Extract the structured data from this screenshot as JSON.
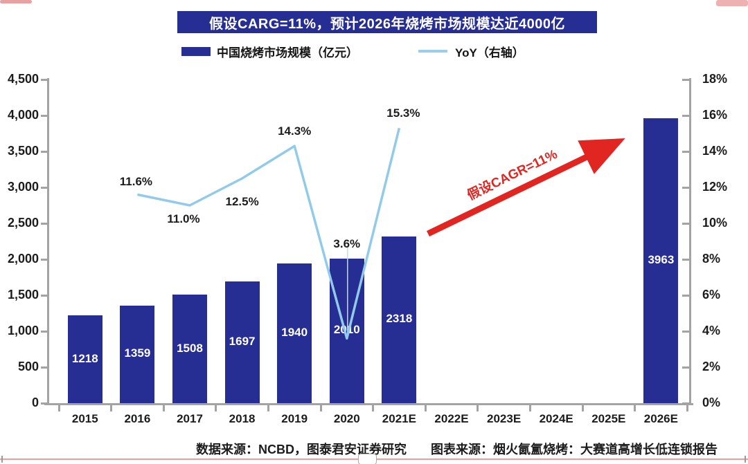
{
  "title": {
    "text": "假设CARG=11%，预计2026年烧烤市场规模达近4000亿"
  },
  "legend": {
    "items": [
      {
        "label": "中国烧烤市场规模（亿元）",
        "swatch": "bar",
        "color": "#262D93"
      },
      {
        "label": "YoY（右轴）",
        "swatch": "line",
        "color": "#9CCEEA"
      }
    ]
  },
  "annotations": {
    "trend_arrow_label": "假设CAGR=11%",
    "arrow_color": "#E12520"
  },
  "footer": {
    "data_source": "数据来源：NCBD，图泰君安证券研究",
    "chart_source": "图表来源：烟火氤氲烧烤：大赛道高增长低连锁报告"
  },
  "chart_data": {
    "type": "bar",
    "title": "假设CARG=11%，预计2026年烧烤市场规模达近4000亿",
    "categories": [
      "2015",
      "2016",
      "2017",
      "2018",
      "2019",
      "2020",
      "2021E",
      "2022E",
      "2023E",
      "2024E",
      "2025E",
      "2026E"
    ],
    "series": [
      {
        "name": "中国烧烤市场规模（亿元）",
        "type": "bar",
        "axis": "left",
        "color": "#262D93",
        "values": [
          1218,
          1359,
          1508,
          1697,
          1940,
          2010,
          2318,
          null,
          null,
          null,
          null,
          3963
        ],
        "value_labels": [
          "1218",
          "1359",
          "1508",
          "1697",
          "1940",
          "2010",
          "2318",
          "",
          "",
          "",
          "",
          "3963"
        ]
      },
      {
        "name": "YoY（右轴）",
        "type": "line",
        "axis": "right",
        "color": "#92CBE9",
        "values": [
          null,
          11.6,
          11.0,
          12.5,
          14.3,
          3.6,
          15.3,
          null,
          null,
          null,
          null,
          null
        ],
        "point_labels": [
          "",
          "11.6%",
          "11.0%",
          "12.5%",
          "14.3%",
          "3.6%",
          "15.3%",
          "",
          "",
          "",
          "",
          ""
        ]
      }
    ],
    "left_axis": {
      "min": 0,
      "max": 4500,
      "tick_values": [
        0,
        500,
        1000,
        1500,
        2000,
        2500,
        3000,
        3500,
        4000,
        4500
      ],
      "tick_labels": [
        "0",
        "500",
        "1,000",
        "1,500",
        "2,000",
        "2,500",
        "3,000",
        "3,500",
        "4,000",
        "4,500"
      ]
    },
    "right_axis": {
      "min": 0,
      "max": 18,
      "tick_values": [
        0,
        2,
        4,
        6,
        8,
        10,
        12,
        14,
        16,
        18
      ],
      "tick_labels": [
        "0%",
        "2%",
        "4%",
        "6%",
        "8%",
        "10%",
        "12%",
        "14%",
        "16%",
        "18%"
      ]
    },
    "grid": false,
    "legend_position": "top",
    "annotation": "假设CAGR=11%，预测线从2021E指向2026E"
  }
}
